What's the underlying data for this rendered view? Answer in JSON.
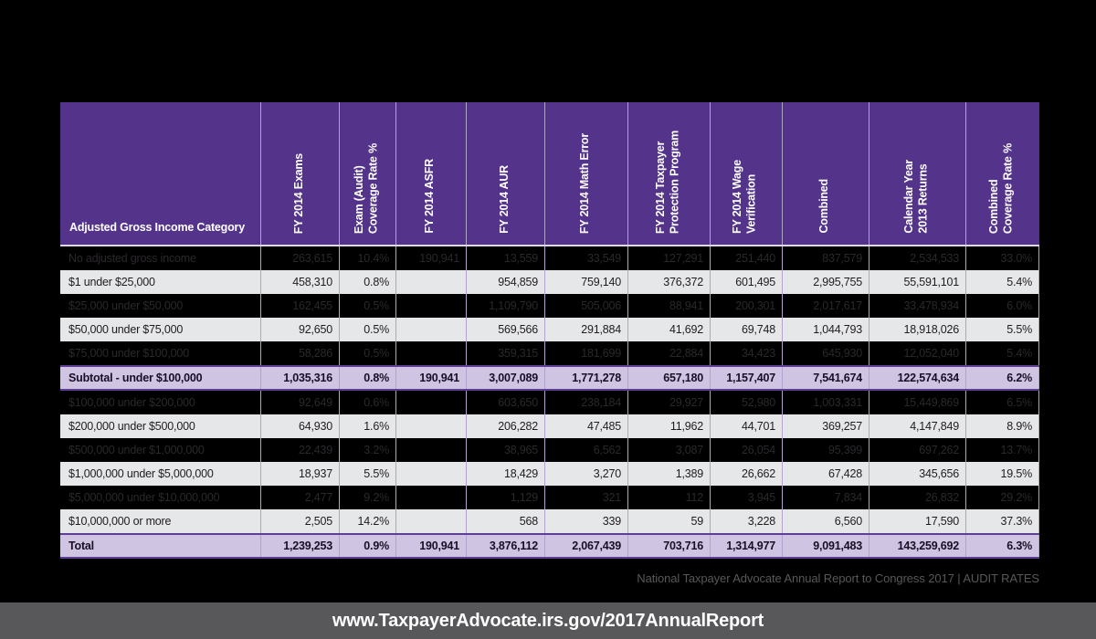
{
  "colors": {
    "header_purple": "#54338A",
    "row_highlight_lavender": "#CFC4E2",
    "row_light_gray": "#E6E7E8",
    "column_separator": "#B3A2CE",
    "bottom_bar_gray": "#58585B",
    "page_background": "#000000"
  },
  "table": {
    "columns": [
      {
        "label": "Adjusted Gross Income Category",
        "orientation": "horizontal"
      },
      {
        "label": "FY 2014 Exams",
        "orientation": "vertical"
      },
      {
        "label": "Exam (Audit)\nCoverage Rate %",
        "orientation": "vertical"
      },
      {
        "label": "FY 2014 ASFR",
        "orientation": "vertical"
      },
      {
        "label": "FY 2014 AUR",
        "orientation": "vertical"
      },
      {
        "label": "FY 2014 Math Error",
        "orientation": "vertical"
      },
      {
        "label": "FY 2014 Taxpayer\nProtection Program",
        "orientation": "vertical"
      },
      {
        "label": "FY 2014 Wage\nVerification",
        "orientation": "vertical"
      },
      {
        "label": "Combined",
        "orientation": "vertical"
      },
      {
        "label": "Calendar Year\n2013 Returns",
        "orientation": "vertical"
      },
      {
        "label": "Combined\nCoverage Rate %",
        "orientation": "vertical"
      }
    ],
    "rows": [
      {
        "style": "dark",
        "category": "No adjusted gross income",
        "values": [
          "263,615",
          "10.4%",
          "190,941",
          "13,559",
          "33,549",
          "127,291",
          "251,440",
          "837,579",
          "2,534,533",
          "33.0%"
        ]
      },
      {
        "style": "light",
        "category": "$1 under $25,000",
        "values": [
          "458,310",
          "0.8%",
          "",
          "954,859",
          "759,140",
          "376,372",
          "601,495",
          "2,995,755",
          "55,591,101",
          "5.4%"
        ]
      },
      {
        "style": "dark",
        "category": "$25,000 under $50,000",
        "values": [
          "162,455",
          "0.5%",
          "",
          "1,109,790",
          "505,006",
          "88,941",
          "200,301",
          "2,017,617",
          "33,478,934",
          "6.0%"
        ]
      },
      {
        "style": "light",
        "category": "$50,000 under $75,000",
        "values": [
          "92,650",
          "0.5%",
          "",
          "569,566",
          "291,884",
          "41,692",
          "69,748",
          "1,044,793",
          "18,918,026",
          "5.5%"
        ]
      },
      {
        "style": "dark",
        "category": "$75,000 under $100,000",
        "values": [
          "58,286",
          "0.5%",
          "",
          "359,315",
          "181,699",
          "22,884",
          "34,423",
          "645,930",
          "12,052,040",
          "5.4%"
        ]
      },
      {
        "style": "subtotal",
        "category": "Subtotal - under $100,000",
        "values": [
          "1,035,316",
          "0.8%",
          "190,941",
          "3,007,089",
          "1,771,278",
          "657,180",
          "1,157,407",
          "7,541,674",
          "122,574,634",
          "6.2%"
        ]
      },
      {
        "style": "dark",
        "category": "$100,000 under $200,000",
        "values": [
          "92,649",
          "0.6%",
          "",
          "603,650",
          "238,184",
          "29,927",
          "52,980",
          "1,003,331",
          "15,449,869",
          "6.5%"
        ]
      },
      {
        "style": "light",
        "category": "$200,000 under $500,000",
        "values": [
          "64,930",
          "1.6%",
          "",
          "206,282",
          "47,485",
          "11,962",
          "44,701",
          "369,257",
          "4,147,849",
          "8.9%"
        ]
      },
      {
        "style": "dark",
        "category": "$500,000 under $1,000,000",
        "values": [
          "22,439",
          "3.2%",
          "",
          "38,965",
          "6,562",
          "3,087",
          "26,054",
          "95,399",
          "697,262",
          "13.7%"
        ]
      },
      {
        "style": "light",
        "category": "$1,000,000 under $5,000,000",
        "values": [
          "18,937",
          "5.5%",
          "",
          "18,429",
          "3,270",
          "1,389",
          "26,662",
          "67,428",
          "345,656",
          "19.5%"
        ]
      },
      {
        "style": "dark",
        "category": "$5,000,000 under $10,000,000",
        "values": [
          "2,477",
          "9.2%",
          "",
          "1,129",
          "321",
          "112",
          "3,945",
          "7,834",
          "26,832",
          "29.2%"
        ]
      },
      {
        "style": "light",
        "category": "$10,000,000 or more",
        "values": [
          "2,505",
          "14.2%",
          "",
          "568",
          "339",
          "59",
          "3,228",
          "6,560",
          "17,590",
          "37.3%"
        ]
      },
      {
        "style": "total",
        "category": "Total",
        "values": [
          "1,239,253",
          "0.9%",
          "190,941",
          "3,876,112",
          "2,067,439",
          "703,716",
          "1,314,977",
          "9,091,483",
          "143,259,692",
          "6.3%"
        ]
      }
    ]
  },
  "footer": {
    "credit": "National Taxpayer Advocate Annual Report to Congress 2017  |  AUDIT RATES"
  },
  "bottom_bar": {
    "url": "www.TaxpayerAdvocate.irs.gov/2017AnnualReport"
  }
}
